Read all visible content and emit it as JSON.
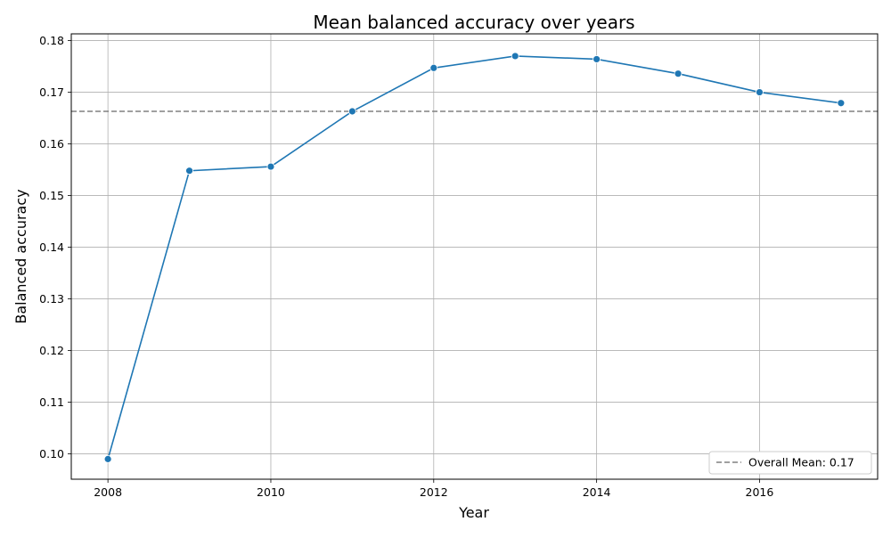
{
  "chart_data": {
    "type": "line",
    "title": "Mean balanced accuracy over years",
    "xlabel": "Year",
    "ylabel": "Balanced accuracy",
    "xlim": [
      2007.55,
      2017.45
    ],
    "ylim": [
      0.0951,
      0.1813
    ],
    "x_ticks": [
      2008,
      2010,
      2012,
      2014,
      2016
    ],
    "y_ticks": [
      0.1,
      0.11,
      0.12,
      0.13,
      0.14,
      0.15,
      0.16,
      0.17,
      0.18
    ],
    "grid": true,
    "legend_position": "lower-right",
    "series": [
      {
        "color": "#1f77b4",
        "marker": "circle",
        "x": [
          2008,
          2009,
          2010,
          2011,
          2012,
          2013,
          2014,
          2015,
          2016,
          2017
        ],
        "y": [
          0.099,
          0.1548,
          0.1556,
          0.1663,
          0.1747,
          0.177,
          0.1764,
          0.1736,
          0.17,
          0.1679
        ]
      }
    ],
    "reference_lines": [
      {
        "name": "Overall Mean: 0.17",
        "y": 0.1663,
        "color": "#808080",
        "style": "dashed"
      }
    ]
  }
}
